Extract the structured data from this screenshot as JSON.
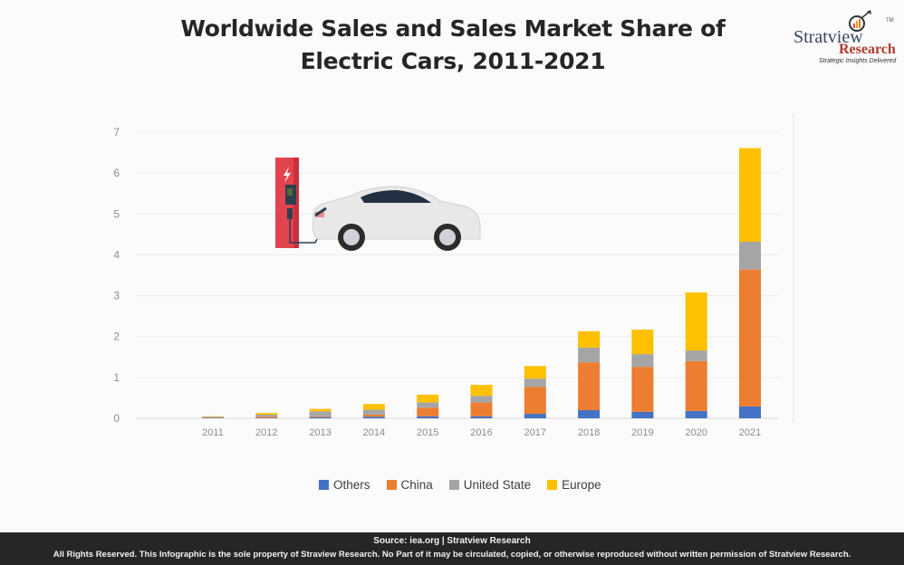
{
  "header": {
    "title_line1": "Worldwide Sales and Sales Market Share of",
    "title_line2": "Electric Cars, 2011-2021"
  },
  "logo": {
    "brand": "Stratview",
    "tm": "TM",
    "research": "Research",
    "tagline": "Strategic Insights Delivered"
  },
  "footer": {
    "source": "Source:  iea.org  | Stratview Research",
    "rights": "All Rights Reserved. This Infographic is the sole property of Straview Research. No Part of it may be circulated, copied, or otherwise reproduced without written permission of Stratview Research."
  },
  "illustration": {
    "icon": "ev-charging-station-with-car"
  },
  "colors": {
    "Others": "#4472c4",
    "China": "#ed7d31",
    "United State": "#a5a5a5",
    "Europe": "#ffc000"
  },
  "chart_data": {
    "type": "bar",
    "stacked": true,
    "title": "Worldwide Sales and Sales Market Share of Electric Cars, 2011-2021",
    "xlabel": "",
    "ylabel": "",
    "ylim": [
      0,
      7
    ],
    "yticks": [
      0,
      1,
      2,
      3,
      4,
      5,
      6,
      7
    ],
    "grid": true,
    "legend": "bottom",
    "categories": [
      "2011",
      "2012",
      "2013",
      "2014",
      "2015",
      "2016",
      "2017",
      "2018",
      "2019",
      "2020",
      "2021"
    ],
    "series": [
      {
        "name": "Others",
        "values": [
          0.01,
          0.01,
          0.03,
          0.04,
          0.05,
          0.05,
          0.11,
          0.2,
          0.16,
          0.18,
          0.29
        ]
      },
      {
        "name": "China",
        "values": [
          0.01,
          0.03,
          0.02,
          0.05,
          0.21,
          0.34,
          0.66,
          1.17,
          1.1,
          1.22,
          3.35
        ]
      },
      {
        "name": "United State",
        "values": [
          0.02,
          0.05,
          0.12,
          0.12,
          0.13,
          0.16,
          0.2,
          0.36,
          0.31,
          0.26,
          0.68
        ]
      },
      {
        "name": "Europe",
        "values": [
          0.01,
          0.04,
          0.06,
          0.14,
          0.19,
          0.27,
          0.31,
          0.4,
          0.6,
          1.42,
          2.29
        ]
      }
    ]
  }
}
